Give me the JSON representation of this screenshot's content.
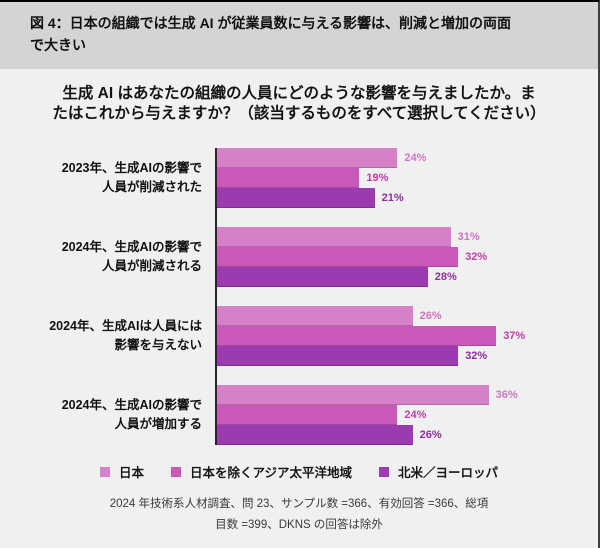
{
  "header": {
    "title_line1": "図 4：日本の組織では生成 AI が従業員数に与える影響は、削減と増加の両面",
    "title_line2": "で大きい"
  },
  "question": {
    "line1": "生成 AI はあなたの組織の人員にどのような影響を与えましたか。ま",
    "line2": "たはこれから与えますか？（該当するものをすべて選択してください）"
  },
  "chart_data": {
    "type": "bar",
    "orientation": "horizontal",
    "title": "",
    "value_suffix": "%",
    "xlim": [
      0,
      40
    ],
    "grid": false,
    "legend_position": "bottom",
    "categories": [
      {
        "line1": "2023年、生成AIの影響で",
        "line2": "人員が削減された"
      },
      {
        "line1": "2024年、生成AIの影響で",
        "line2": "人員が削減される"
      },
      {
        "line1": "2024年、生成AIは人員には",
        "line2": "影響を与えない"
      },
      {
        "line1": "2024年、生成AIの影響で",
        "line2": "人員が増加する"
      }
    ],
    "series": [
      {
        "name": "日本",
        "color": "#d680ca",
        "label_color": "#cf74c4",
        "values": [
          24,
          31,
          26,
          36
        ]
      },
      {
        "name": "日本を除くアジア太平洋地域",
        "color": "#ca58b8",
        "label_color": "#c13ea8",
        "values": [
          19,
          32,
          37,
          24
        ]
      },
      {
        "name": "北米／ヨーロッパ",
        "color": "#9c3ab0",
        "label_color": "#8d2d9f",
        "values": [
          21,
          28,
          32,
          26
        ]
      }
    ]
  },
  "footer": {
    "line1": "2024 年技術系人材調査、問 23、サンプル数 =366、有効回答 =366、総項",
    "line2": "目数 =399、DKNS の回答は除外"
  }
}
